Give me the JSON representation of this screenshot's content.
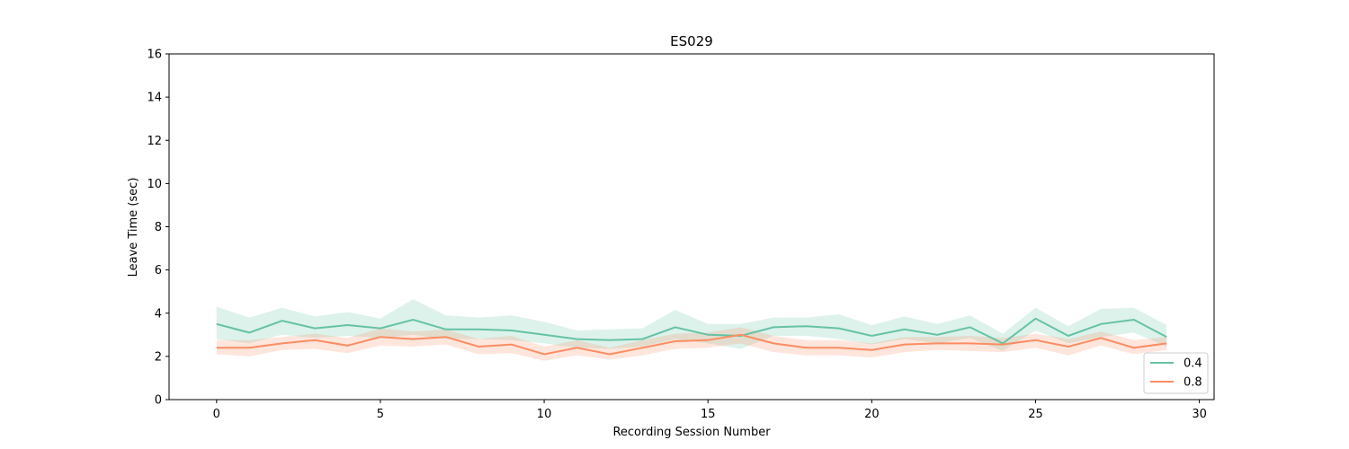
{
  "chart_data": {
    "type": "line",
    "title": "ES029",
    "xlabel": "Recording Session Number",
    "ylabel": "Leave Time (sec)",
    "xlim": [
      -1.45,
      30.45
    ],
    "ylim": [
      0,
      16
    ],
    "xticks": [
      0,
      5,
      10,
      15,
      20,
      25,
      30
    ],
    "yticks": [
      0,
      2,
      4,
      6,
      8,
      10,
      12,
      14,
      16
    ],
    "grid": false,
    "legend_position": "lower-right",
    "x": [
      0,
      1,
      2,
      3,
      4,
      5,
      6,
      7,
      8,
      9,
      10,
      11,
      12,
      13,
      14,
      15,
      16,
      17,
      18,
      19,
      20,
      21,
      22,
      23,
      24,
      25,
      26,
      27,
      28,
      29
    ],
    "series": [
      {
        "name": "0.4",
        "color": "#66c2a5",
        "values": [
          3.5,
          3.1,
          3.65,
          3.3,
          3.45,
          3.3,
          3.7,
          3.25,
          3.25,
          3.2,
          3.0,
          2.8,
          2.75,
          2.8,
          3.35,
          3.0,
          2.95,
          3.35,
          3.4,
          3.3,
          2.95,
          3.25,
          3.0,
          3.35,
          2.6,
          3.75,
          2.95,
          3.5,
          3.7,
          2.9
        ],
        "lower": [
          2.8,
          2.6,
          3.0,
          2.85,
          2.95,
          2.85,
          3.0,
          2.8,
          2.8,
          2.75,
          2.6,
          2.4,
          2.35,
          2.45,
          2.8,
          2.6,
          2.35,
          2.95,
          2.95,
          2.8,
          2.55,
          2.8,
          2.6,
          2.85,
          2.25,
          3.2,
          2.6,
          2.9,
          3.1,
          2.45
        ],
        "upper": [
          4.3,
          3.8,
          4.25,
          3.85,
          4.05,
          3.75,
          4.65,
          3.9,
          3.8,
          3.9,
          3.6,
          3.2,
          3.25,
          3.3,
          4.15,
          3.5,
          3.5,
          3.8,
          3.8,
          3.95,
          3.45,
          3.85,
          3.5,
          3.9,
          3.05,
          4.25,
          3.4,
          4.2,
          4.25,
          3.45
        ]
      },
      {
        "name": "0.8",
        "color": "#fc8d62",
        "values": [
          2.4,
          2.4,
          2.6,
          2.75,
          2.5,
          2.9,
          2.8,
          2.9,
          2.45,
          2.55,
          2.1,
          2.4,
          2.1,
          2.4,
          2.7,
          2.75,
          3.0,
          2.6,
          2.4,
          2.4,
          2.3,
          2.55,
          2.6,
          2.6,
          2.55,
          2.75,
          2.45,
          2.85,
          2.4,
          2.6
        ],
        "lower": [
          2.1,
          2.0,
          2.3,
          2.35,
          2.15,
          2.5,
          2.45,
          2.55,
          2.1,
          2.15,
          1.8,
          2.05,
          1.85,
          2.05,
          2.35,
          2.4,
          2.6,
          2.2,
          2.05,
          2.05,
          1.95,
          2.2,
          2.3,
          2.25,
          2.2,
          2.4,
          2.05,
          2.5,
          2.1,
          2.3
        ],
        "upper": [
          2.75,
          2.75,
          2.9,
          3.05,
          2.85,
          3.3,
          3.15,
          3.25,
          2.8,
          2.95,
          2.45,
          2.75,
          2.4,
          2.75,
          3.05,
          3.1,
          3.35,
          2.95,
          2.75,
          2.75,
          2.6,
          2.9,
          2.9,
          2.95,
          2.85,
          3.05,
          2.8,
          3.15,
          2.75,
          2.9
        ]
      }
    ]
  }
}
